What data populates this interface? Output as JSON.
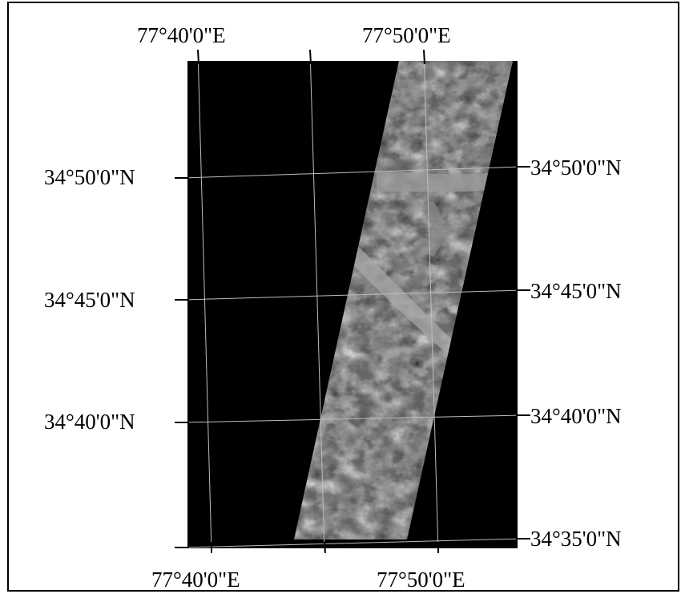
{
  "map": {
    "background_color": "#000000",
    "graticule_color": "#bdbdbd",
    "imagery_description": "satellite image strip",
    "top_longitude_labels": [
      "77°40'0\"E",
      "77°50'0\"E"
    ],
    "bottom_longitude_labels": [
      "77°40'0\"E",
      "77°50'0\"E"
    ],
    "left_latitude_labels": [
      "34°50'0\"N",
      "34°45'0\"N",
      "34°40'0\"N"
    ],
    "right_latitude_labels": [
      "34°50'0\"N",
      "34°45'0\"N",
      "34°40'0\"N",
      "34°35'0\"N"
    ]
  }
}
